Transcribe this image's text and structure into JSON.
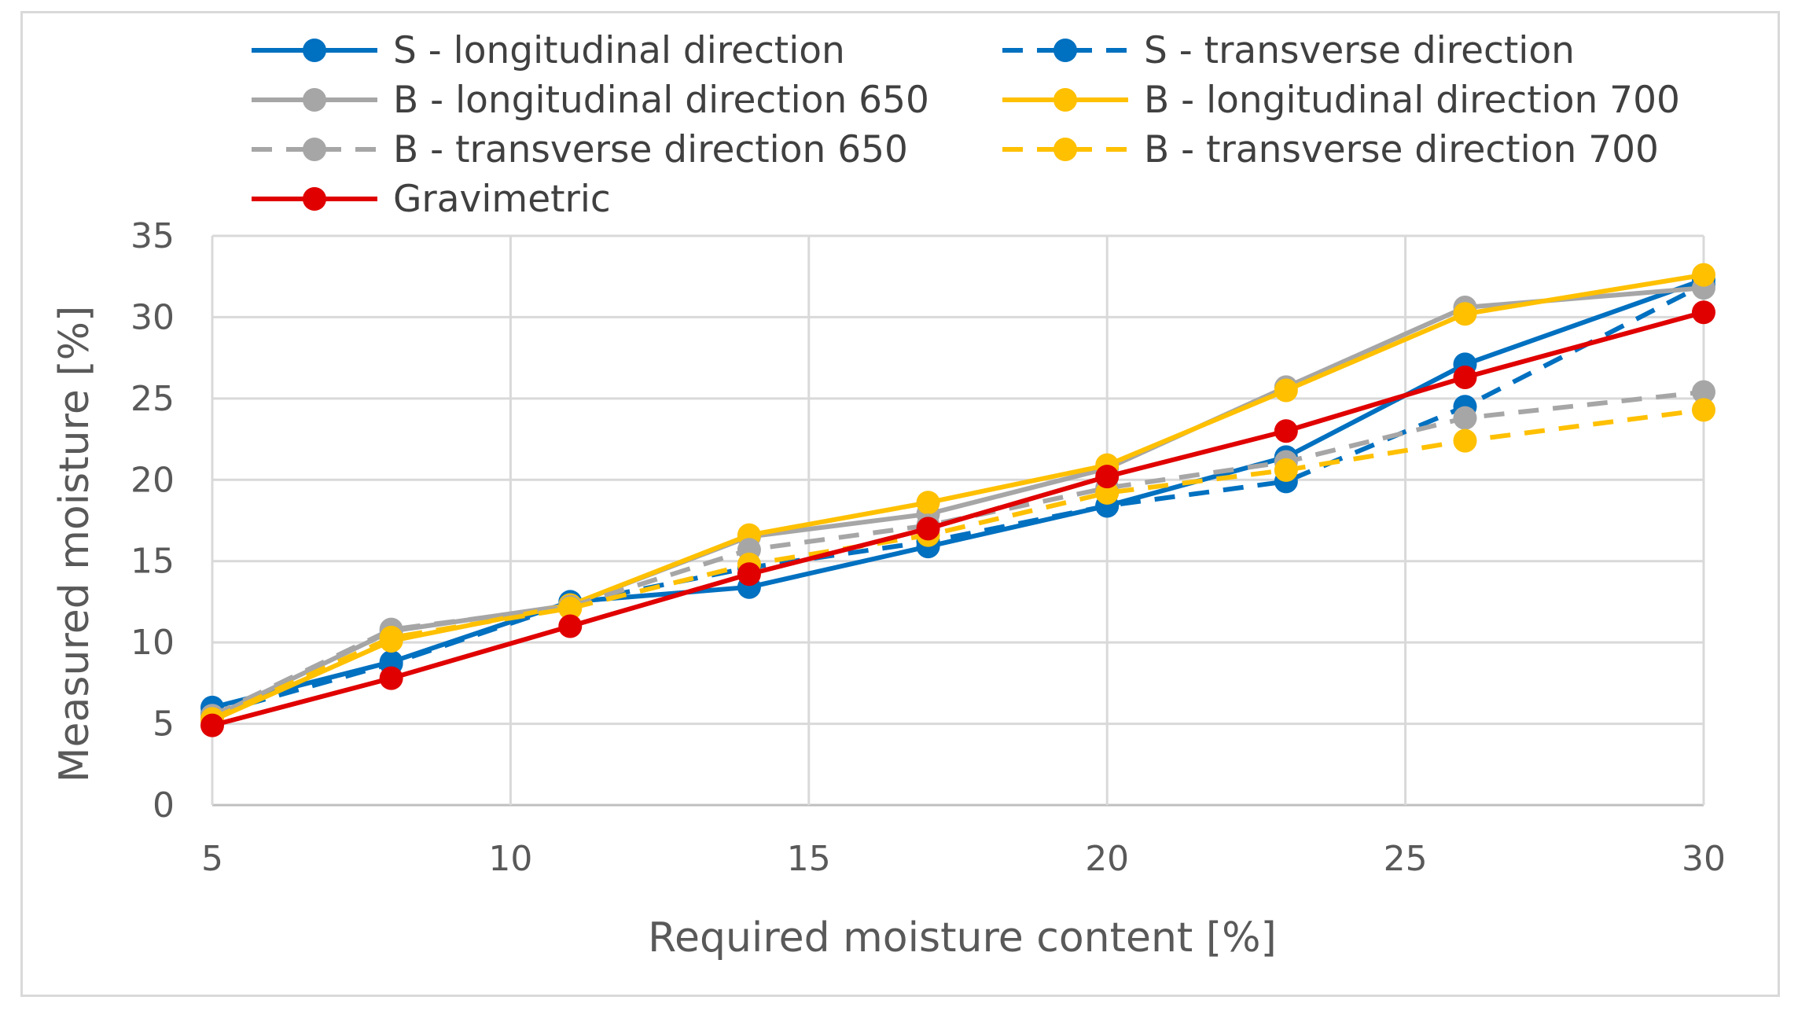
{
  "chart_data": {
    "type": "line",
    "title": "",
    "xlabel": "Required moisture content [%]",
    "ylabel": "Measured moisture [%]",
    "x": [
      5,
      8,
      11,
      14,
      17,
      20,
      23,
      26,
      30
    ],
    "xlim": [
      5,
      30
    ],
    "ylim": [
      0,
      35
    ],
    "xticks": [
      5,
      10,
      15,
      20,
      25,
      30
    ],
    "yticks": [
      0,
      5,
      10,
      15,
      20,
      25,
      30,
      35
    ],
    "grid": true,
    "legend_position": "top",
    "series": [
      {
        "name": "S - longitudinal direction",
        "color": "#0070c0",
        "dash": "solid",
        "values": [
          6.0,
          8.8,
          12.5,
          13.4,
          15.9,
          18.4,
          21.4,
          27.1,
          32.3
        ]
      },
      {
        "name": "S - transverse direction",
        "color": "#0070c0",
        "dash": "dashed",
        "values": [
          5.6,
          8.7,
          12.4,
          14.6,
          16.2,
          18.4,
          19.9,
          24.5,
          32.0
        ]
      },
      {
        "name": "B - longitudinal direction 650",
        "color": "#a6a6a6",
        "dash": "solid",
        "values": [
          5.4,
          10.7,
          12.3,
          16.5,
          17.9,
          20.7,
          25.7,
          30.6,
          31.8
        ]
      },
      {
        "name": "B - longitudinal direction 700",
        "color": "#ffc000",
        "dash": "solid",
        "values": [
          5.2,
          10.1,
          12.3,
          16.6,
          18.6,
          20.9,
          25.5,
          30.2,
          32.6
        ]
      },
      {
        "name": "B - transverse direction 650",
        "color": "#a6a6a6",
        "dash": "dashed",
        "values": [
          5.5,
          10.8,
          12.2,
          15.7,
          17.2,
          19.5,
          21.1,
          23.8,
          25.4
        ]
      },
      {
        "name": "B - transverse direction 700",
        "color": "#ffc000",
        "dash": "dashed",
        "values": [
          5.3,
          10.3,
          12.1,
          14.8,
          16.6,
          19.2,
          20.6,
          22.4,
          24.3
        ]
      },
      {
        "name": "Gravimetric",
        "color": "#e00000",
        "dash": "solid",
        "values": [
          4.9,
          7.8,
          11.0,
          14.2,
          17.0,
          20.2,
          23.0,
          26.3,
          30.3
        ]
      }
    ]
  }
}
